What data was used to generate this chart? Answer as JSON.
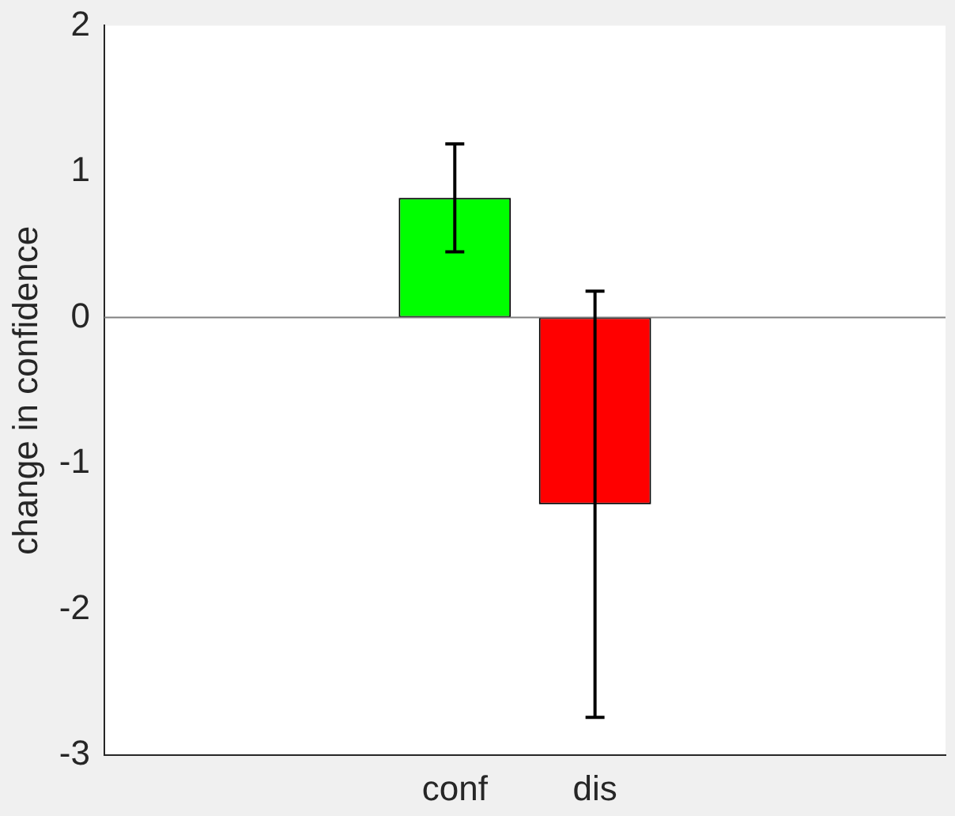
{
  "chart_data": {
    "type": "bar",
    "ylabel": "change in confidence",
    "categories": [
      "conf",
      "dis"
    ],
    "values": [
      0.82,
      -1.28
    ],
    "colors": [
      "#00ff00",
      "#ff0000"
    ],
    "errors": [
      [
        0.45,
        1.19
      ],
      [
        -2.74,
        0.18
      ]
    ],
    "ylim": [
      -3,
      2
    ],
    "yticks": [
      -3,
      -2,
      -1,
      0,
      1,
      2
    ],
    "ref_lines": [
      {
        "axis": "y",
        "value": 0,
        "color": "#808080"
      }
    ],
    "grid": false,
    "legend": false
  }
}
